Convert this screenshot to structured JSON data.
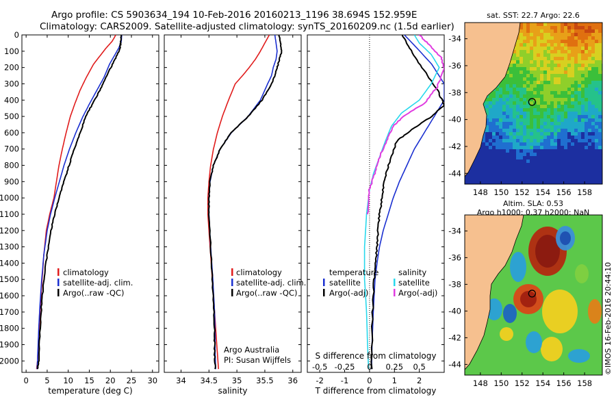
{
  "header": {
    "line1": "Argo profile: CS 5903634_194 10-Feb-2016 20160213_1196 38.694S 152.959E",
    "line2": "Climatology: CARS2009. Satellite-adjusted climatology: synTS_20160209.nc (1.5d earlier)"
  },
  "colors": {
    "climatology": "#e01b1b",
    "satellite_adj": "#1a2fd0",
    "argo": "#000000",
    "sal_satellite": "#27d8ec",
    "sal_argo_adj": "#e03ce0"
  },
  "depth_axis": {
    "ticks": [
      "0",
      "100",
      "200",
      "300",
      "400",
      "500",
      "600",
      "700",
      "800",
      "900",
      "1000",
      "1100",
      "1200",
      "1300",
      "1400",
      "1500",
      "1600",
      "1700",
      "1800",
      "1900",
      "2000"
    ],
    "range": [
      0,
      2070
    ],
    "inverted": true
  },
  "chart_data": [
    {
      "type": "line",
      "name": "temperature_profile",
      "xlabel": "temperature (deg C)",
      "ylabel": "",
      "xlim": [
        -1,
        31.5
      ],
      "ylim": [
        2070,
        0
      ],
      "x_ticks": [
        "0",
        "5",
        "10",
        "15",
        "20",
        "25",
        "30"
      ],
      "legend": [
        "climatology",
        "satellite-adj. clim.",
        "Argo(..raw -QC)"
      ],
      "legend_position": "bottom-right",
      "series": [
        {
          "name": "climatology",
          "color": "#e01b1b",
          "x": [
            21.3,
            20.4,
            19.0,
            17.5,
            16.0,
            14.3,
            12.8,
            11.6,
            10.5,
            9.5,
            8.6,
            7.8,
            6.6,
            5.6,
            4.8,
            4.2,
            3.8,
            3.4,
            3.1,
            2.9,
            2.7,
            2.5
          ],
          "y": [
            0,
            40,
            80,
            130,
            180,
            260,
            340,
            420,
            500,
            600,
            700,
            800,
            1000,
            1100,
            1200,
            1350,
            1500,
            1650,
            1800,
            1900,
            2000,
            2050
          ]
        },
        {
          "name": "satellite-adj. clim.",
          "color": "#1a2fd0",
          "x": [
            22.7,
            22.6,
            22.0,
            20.9,
            19.8,
            18.5,
            16.8,
            15.1,
            13.5,
            11.8,
            10.3,
            9.0,
            7.9,
            6.8,
            5.8,
            5.0,
            4.2,
            3.7,
            3.3,
            3.0,
            2.7,
            2.6
          ],
          "y": [
            0,
            40,
            80,
            130,
            180,
            260,
            340,
            420,
            500,
            600,
            700,
            800,
            900,
            1000,
            1100,
            1200,
            1350,
            1500,
            1650,
            1800,
            2000,
            2050
          ]
        },
        {
          "name": "Argo(..raw -QC)",
          "color": "#000000",
          "x": [
            22.6,
            22.5,
            22.3,
            21.5,
            20.5,
            19.0,
            17.5,
            15.8,
            14.2,
            12.8,
            11.4,
            10.2,
            9.0,
            7.8,
            6.8,
            5.9,
            5.0,
            4.2,
            3.7,
            3.3,
            3.0,
            2.7
          ],
          "y": [
            0,
            40,
            80,
            130,
            180,
            260,
            340,
            420,
            500,
            600,
            700,
            800,
            900,
            1000,
            1100,
            1200,
            1350,
            1500,
            1650,
            1800,
            2000,
            2050
          ]
        }
      ]
    },
    {
      "type": "line",
      "name": "salinity_profile",
      "xlabel": "salinity",
      "ylabel": "",
      "xlim": [
        33.7,
        36.15
      ],
      "ylim": [
        2070,
        0
      ],
      "x_ticks": [
        "34",
        "34.5",
        "35",
        "35.5",
        "36"
      ],
      "legend": [
        "climatology",
        "satellite-adj. clim.",
        "Argo(..raw -QC)"
      ],
      "legend_position": "bottom-right",
      "annotation": [
        "Argo Australia",
        "PI: Susan Wijffels"
      ],
      "series": [
        {
          "name": "climatology",
          "color": "#e01b1b",
          "x": [
            35.58,
            35.5,
            35.42,
            35.33,
            35.22,
            35.1,
            34.97,
            34.85,
            34.74,
            34.65,
            34.58,
            34.53,
            34.5,
            34.48,
            34.48,
            34.52,
            34.56,
            34.6,
            34.63,
            34.65,
            34.67
          ],
          "y": [
            0,
            50,
            100,
            150,
            200,
            250,
            300,
            400,
            500,
            600,
            700,
            800,
            900,
            1000,
            1100,
            1300,
            1500,
            1700,
            1850,
            1950,
            2050
          ]
        },
        {
          "name": "satellite-adj. clim.",
          "color": "#1a2fd0",
          "x": [
            35.68,
            35.7,
            35.72,
            35.7,
            35.65,
            35.62,
            35.55,
            35.42,
            35.2,
            34.9,
            34.7,
            34.58,
            34.52,
            34.5,
            34.5,
            34.53,
            34.57,
            34.6,
            34.61,
            34.61,
            34.62
          ],
          "y": [
            0,
            50,
            100,
            150,
            200,
            250,
            300,
            400,
            500,
            600,
            700,
            800,
            900,
            1000,
            1100,
            1300,
            1500,
            1700,
            1850,
            1950,
            2050
          ]
        },
        {
          "name": "Argo(..raw -QC)",
          "color": "#000000",
          "x": [
            35.75,
            35.78,
            35.8,
            35.76,
            35.72,
            35.68,
            35.62,
            35.45,
            35.2,
            34.9,
            34.7,
            34.58,
            34.52,
            34.5,
            34.5,
            34.53,
            34.56,
            34.59,
            34.6,
            34.6,
            34.61
          ],
          "y": [
            0,
            50,
            100,
            150,
            200,
            250,
            300,
            400,
            500,
            600,
            700,
            800,
            900,
            1000,
            1100,
            1300,
            1500,
            1700,
            1850,
            1950,
            2050
          ]
        }
      ]
    },
    {
      "type": "line",
      "name": "difference_profile",
      "xlabel": "T difference from climatology",
      "xlabel_top": "S difference from climatology",
      "xlim": [
        -2.5,
        3.0
      ],
      "ylim": [
        2070,
        0
      ],
      "x_ticks": [
        "-2",
        "-1",
        "0",
        "1",
        "2"
      ],
      "x_ticks_salinity": [
        "-0.5",
        "-0.25",
        "0",
        "0.25",
        "0.5"
      ],
      "legend_temperature_title": "temperature",
      "legend_salinity_title": "salinity",
      "legend": [
        "satellite",
        "Argo(-adj)",
        "satellite",
        "Argo(-adj)"
      ],
      "legend_position": "bottom",
      "series": [
        {
          "name": "satellite",
          "group": "temperature",
          "color": "#1a2fd0",
          "x": [
            1.4,
            1.9,
            2.5,
            3.0,
            3.0,
            2.6,
            2.2,
            1.8,
            1.5,
            1.2,
            0.95,
            0.75,
            0.55,
            0.4,
            0.3,
            0.22,
            0.15,
            0.1,
            0.08
          ],
          "y": [
            0,
            80,
            180,
            300,
            400,
            500,
            600,
            700,
            800,
            900,
            1000,
            1100,
            1200,
            1300,
            1400,
            1500,
            1700,
            1900,
            2050
          ]
        },
        {
          "name": "Argo(-adj)",
          "group": "temperature",
          "color": "#000000",
          "x": [
            1.3,
            1.6,
            2.1,
            2.7,
            3.0,
            2.5,
            1.7,
            1.1,
            0.75,
            0.6,
            0.5,
            0.4,
            0.35,
            0.3,
            0.25,
            0.18,
            0.12,
            0.08
          ],
          "y": [
            0,
            80,
            200,
            330,
            430,
            500,
            580,
            650,
            800,
            900,
            1000,
            1100,
            1200,
            1300,
            1400,
            1500,
            1700,
            2050
          ]
        },
        {
          "name": "satellite",
          "group": "salinity",
          "color": "#27d8ec",
          "x": [
            0.45,
            0.5,
            0.62,
            0.7,
            0.62,
            0.5,
            0.32,
            0.22,
            0.16,
            0.1,
            0.04,
            0.0,
            -0.03,
            -0.05,
            -0.05,
            -0.03,
            -0.02,
            -0.01
          ],
          "y": [
            0,
            50,
            120,
            200,
            300,
            400,
            480,
            560,
            650,
            750,
            850,
            950,
            1100,
            1300,
            1500,
            1700,
            1900,
            2050
          ]
        },
        {
          "name": "Argo(-adj)",
          "group": "salinity",
          "color": "#e03ce0",
          "x": [
            0.5,
            0.6,
            0.72,
            0.75,
            0.68,
            0.55,
            0.34,
            0.24,
            0.17,
            0.1,
            0.05,
            0.0,
            -0.02
          ],
          "y": [
            0,
            60,
            140,
            200,
            320,
            420,
            500,
            560,
            650,
            750,
            850,
            950,
            1100
          ]
        }
      ]
    },
    {
      "type": "heatmap",
      "name": "sst_map",
      "title": "sat. SST: 22.7  Argo: 22.6",
      "xlim": [
        146.5,
        159.7
      ],
      "ylim": [
        -44.8,
        -32.8
      ],
      "x_ticks": [
        "148",
        "150",
        "152",
        "154",
        "156",
        "158"
      ],
      "y_ticks": [
        "-34",
        "-36",
        "-38",
        "-40",
        "-42",
        "-44"
      ],
      "marker": {
        "lon": 152.959,
        "lat": -38.694
      }
    },
    {
      "type": "heatmap",
      "name": "sla_map",
      "title": "Altim. SLA: 0.53",
      "subtitle": "Argo h1000: 0.37 h2000: NaN",
      "xlim": [
        146.5,
        159.7
      ],
      "ylim": [
        -44.8,
        -32.8
      ],
      "x_ticks": [
        "148",
        "150",
        "152",
        "154",
        "156",
        "158"
      ],
      "y_ticks": [
        "-34",
        "-36",
        "-38",
        "-40",
        "-42",
        "-44"
      ],
      "marker": {
        "lon": 152.959,
        "lat": -38.694
      }
    }
  ],
  "footer": {
    "stamp": "©IMOS 16-Feb-2016 20:44:10"
  }
}
